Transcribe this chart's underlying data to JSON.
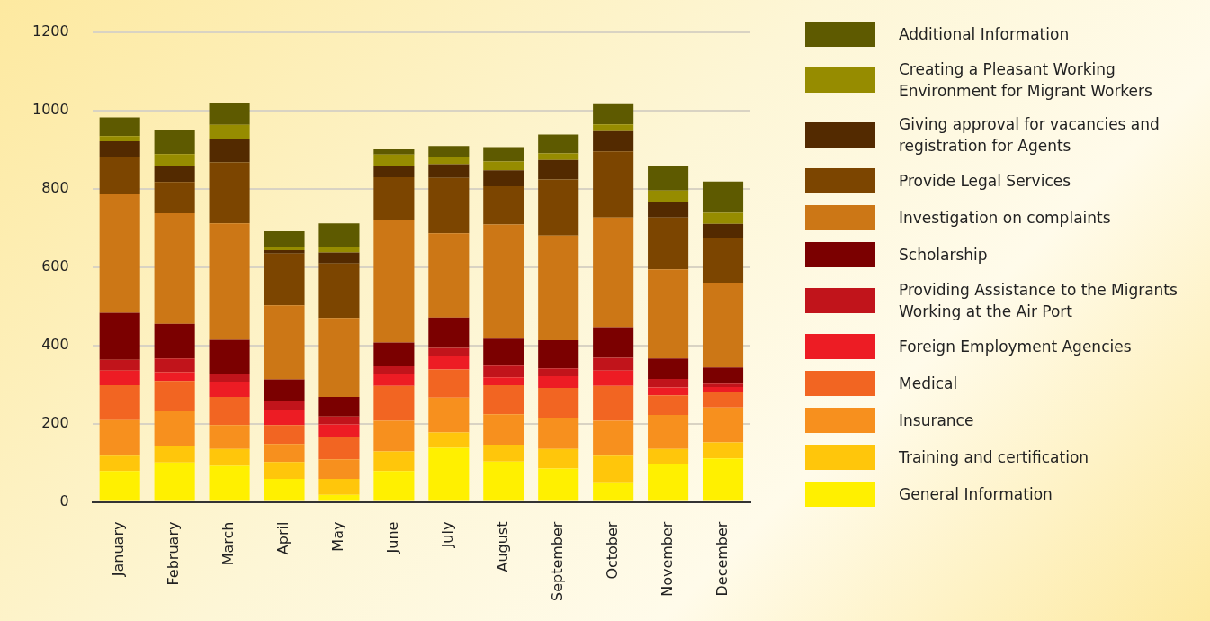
{
  "chart_data": {
    "type": "bar",
    "stacked": true,
    "categories": [
      "January",
      "February",
      "March",
      "April",
      "May",
      "June",
      "July",
      "August",
      "September",
      "October",
      "November",
      "December"
    ],
    "series": [
      {
        "name": "General Information",
        "color": "#fff000",
        "values": [
          79,
          101,
          92,
          59,
          18,
          79,
          138,
          103,
          85,
          48,
          98,
          111
        ]
      },
      {
        "name": "Training and certification",
        "color": "#ffc60b",
        "values": [
          39,
          41,
          43,
          43,
          41,
          50,
          39,
          43,
          50,
          70,
          37,
          41
        ]
      },
      {
        "name": "Insurance",
        "color": "#f7901e",
        "values": [
          91,
          89,
          61,
          46,
          50,
          78,
          89,
          78,
          80,
          89,
          87,
          89
        ]
      },
      {
        "name": "Medical",
        "color": "#f26522",
        "values": [
          89,
          78,
          72,
          48,
          56,
          89,
          72,
          74,
          76,
          89,
          50,
          39
        ]
      },
      {
        "name": "Foreign Employment Agencies",
        "color": "#ed1c24",
        "values": [
          37,
          22,
          39,
          39,
          33,
          30,
          35,
          20,
          30,
          39,
          20,
          13
        ]
      },
      {
        "name": "Providing Assistance to the Migrants Working at the Air Port",
        "color": "#c1141b",
        "values": [
          28,
          35,
          20,
          24,
          20,
          20,
          20,
          30,
          20,
          33,
          22,
          9
        ]
      },
      {
        "name": "Scholarship",
        "color": "#7b0000",
        "values": [
          120,
          89,
          87,
          54,
          50,
          61,
          78,
          69,
          72,
          78,
          52,
          41
        ]
      },
      {
        "name": "Investigation on complaints",
        "color": "#cc7716",
        "values": [
          302,
          282,
          297,
          189,
          202,
          313,
          215,
          291,
          267,
          280,
          228,
          217
        ]
      },
      {
        "name": "Provide Legal Services",
        "color": "#7c4500",
        "values": [
          97,
          80,
          156,
          132,
          139,
          109,
          141,
          98,
          143,
          169,
          132,
          113
        ]
      },
      {
        "name": "Giving approval for vacancies and registration for Agents",
        "color": "#532a00",
        "values": [
          39,
          41,
          61,
          9,
          28,
          30,
          35,
          41,
          50,
          52,
          39,
          37
        ]
      },
      {
        "name": "Creating a Pleasant Working Environment for Migrant Workers",
        "color": "#968c00",
        "values": [
          13,
          30,
          35,
          7,
          15,
          28,
          19,
          22,
          17,
          17,
          30,
          28
        ]
      },
      {
        "name": "Additional Information",
        "color": "#5e5a00",
        "values": [
          48,
          61,
          56,
          41,
          59,
          13,
          28,
          37,
          48,
          52,
          63,
          80
        ]
      }
    ],
    "ylim": [
      0,
      1200
    ],
    "yticks": [
      0,
      200,
      400,
      600,
      800,
      1000,
      1200
    ],
    "grid": "y",
    "legend": "right"
  }
}
